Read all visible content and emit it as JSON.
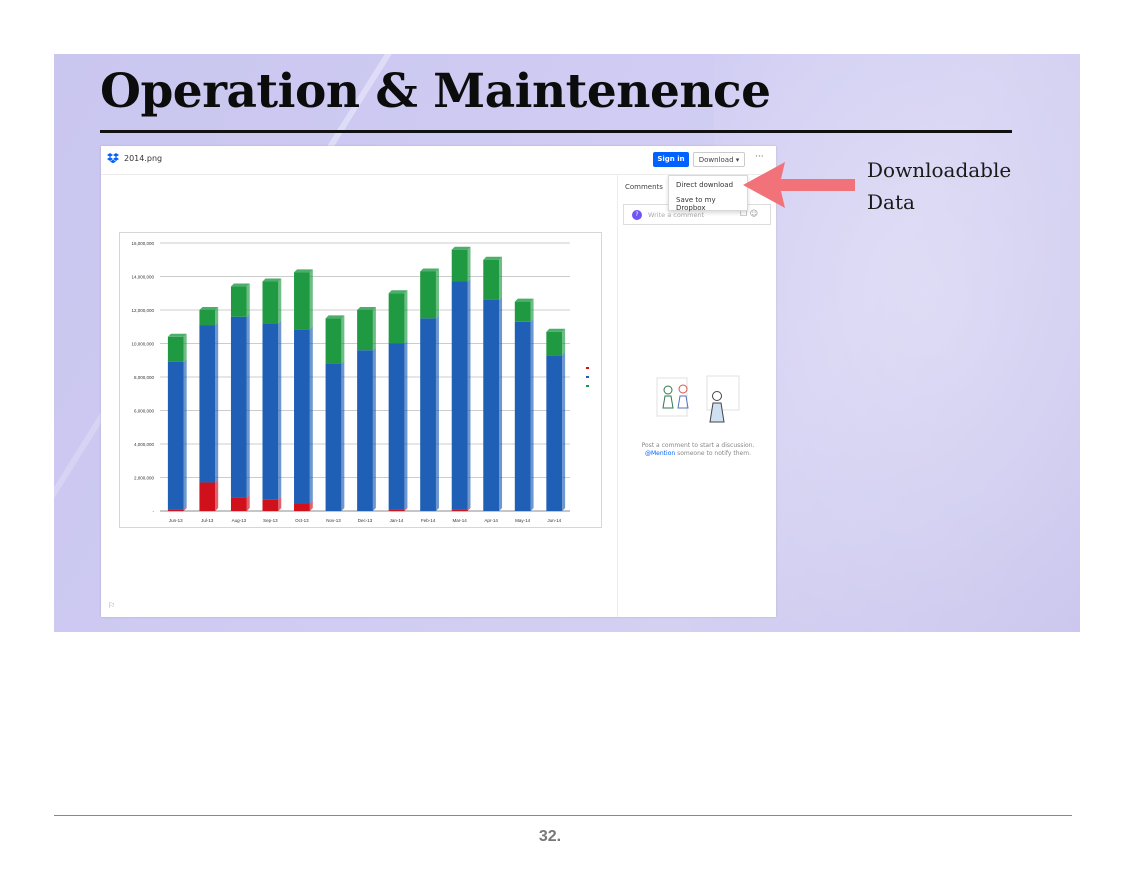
{
  "slide": {
    "title": "Operation & Maintenence",
    "page_number": "32.",
    "callout": {
      "line1": "Downloadable",
      "line2": "Data"
    }
  },
  "viewer": {
    "filename": "2014.png",
    "sign_in_label": "Sign in",
    "download_label": "Download ▾",
    "more_label": "···",
    "download_menu": [
      "Direct download",
      "Save to my Dropbox"
    ],
    "comments_tab": "Comments",
    "comment_placeholder": "Write a comment",
    "avatar_initial": "?",
    "empty_line1": "Post a comment to start a discussion.",
    "empty_mention": "@Mention",
    "empty_line2": " someone to notify them."
  },
  "colors": {
    "blue": "#1f5fb5",
    "green": "#1f9a43",
    "red": "#d0101b",
    "accent": "#0061fe",
    "arrow": "#f2727a"
  },
  "chart_data": {
    "type": "bar",
    "stacked": true,
    "title": "",
    "xlabel": "",
    "ylabel": "",
    "ylim": [
      0,
      16000000
    ],
    "y_ticks": [
      "-",
      "2,000,000",
      "4,000,000",
      "6,000,000",
      "8,000,000",
      "10,000,000",
      "12,000,000",
      "14,000,000",
      "16,000,000"
    ],
    "y_tick_values": [
      0,
      2000000,
      4000000,
      6000000,
      8000000,
      10000000,
      12000000,
      14000000,
      16000000
    ],
    "categories": [
      "Jun-13",
      "Jul-13",
      "Aug-13",
      "Sep-13",
      "Oct-13",
      "Nov-13",
      "Dec-13",
      "Jan-14",
      "Feb-14",
      "Mar-14",
      "Apr-14",
      "May-14",
      "Jun-14"
    ],
    "series": [
      {
        "color": "#d0101b",
        "values": [
          100000,
          1700000,
          800000,
          700000,
          450000,
          0,
          0,
          100000,
          0,
          100000,
          0,
          0,
          0
        ]
      },
      {
        "color": "#1f5fb5",
        "values": [
          8800000,
          9400000,
          10800000,
          10500000,
          10400000,
          8800000,
          9600000,
          9900000,
          11500000,
          13600000,
          12600000,
          11300000,
          9300000
        ]
      },
      {
        "color": "#1f9a43",
        "values": [
          1500000,
          900000,
          1800000,
          2500000,
          3400000,
          2700000,
          2400000,
          3000000,
          2800000,
          1900000,
          2400000,
          1200000,
          1400000
        ]
      }
    ],
    "legend_position": "right"
  }
}
